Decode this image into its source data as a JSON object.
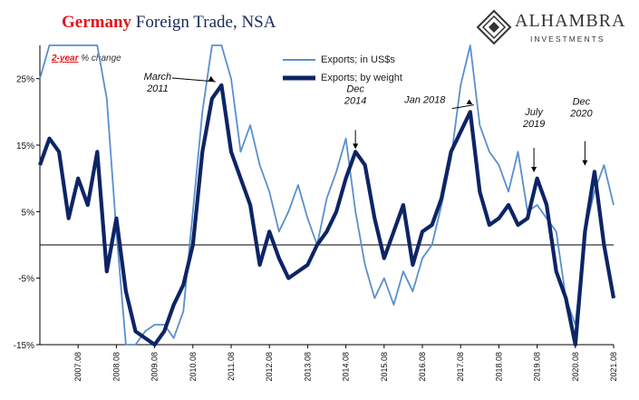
{
  "title": {
    "highlight": "Germany",
    "rest": " Foreign Trade, NSA"
  },
  "subtitle": {
    "highlight": "2-year",
    "rest": " % change"
  },
  "logo": {
    "name": "ALHAMBRA",
    "sub": "INVESTMENTS"
  },
  "colors": {
    "usd": "#5b8fcc",
    "weight": "#0d2466",
    "title_red": "#e0161b"
  },
  "chart_data": {
    "type": "line",
    "ylim": [
      -15,
      30
    ],
    "xlim": [
      "2006-08",
      "2021-08"
    ],
    "y_ticks": [
      25,
      15,
      5,
      -5,
      -15
    ],
    "y_tick_labels": [
      "25%",
      "15%",
      "5%",
      "-5%",
      "-15%"
    ],
    "x_tick_labels": [
      "2007.08",
      "2008.08",
      "2009.08",
      "2010.08",
      "2011.08",
      "2012.08",
      "2013.08",
      "2014.08",
      "2015.08",
      "2016.08",
      "2017.08",
      "2018.08",
      "2019.08",
      "2020.08",
      "2021.08"
    ],
    "legend_position": "top-center",
    "series": [
      {
        "name": "Exports; in US$s",
        "x": [
          "2006-08",
          "2006-11",
          "2007-02",
          "2007-05",
          "2007-08",
          "2007-11",
          "2008-02",
          "2008-05",
          "2008-08",
          "2008-11",
          "2009-02",
          "2009-05",
          "2009-08",
          "2009-11",
          "2010-02",
          "2010-05",
          "2010-08",
          "2010-11",
          "2011-02",
          "2011-05",
          "2011-08",
          "2011-11",
          "2012-02",
          "2012-05",
          "2012-08",
          "2012-11",
          "2013-02",
          "2013-05",
          "2013-08",
          "2013-11",
          "2014-02",
          "2014-05",
          "2014-08",
          "2014-11",
          "2015-02",
          "2015-05",
          "2015-08",
          "2015-11",
          "2016-02",
          "2016-05",
          "2016-08",
          "2016-11",
          "2017-02",
          "2017-05",
          "2017-08",
          "2017-11",
          "2018-02",
          "2018-05",
          "2018-08",
          "2018-11",
          "2019-02",
          "2019-05",
          "2019-08",
          "2019-11",
          "2020-02",
          "2020-05",
          "2020-08",
          "2020-11",
          "2021-02",
          "2021-05",
          "2021-08"
        ],
        "values": [
          25,
          30,
          30,
          30,
          30,
          30,
          30,
          22,
          2,
          -15,
          -15,
          -13,
          -12,
          -12,
          -14,
          -10,
          5,
          20,
          30,
          30,
          25,
          14,
          18,
          12,
          8,
          2,
          5,
          9,
          4,
          0,
          7,
          11,
          16,
          5,
          -3,
          -8,
          -5,
          -9,
          -4,
          -7,
          -2,
          0,
          6,
          13,
          24,
          30,
          18,
          14,
          12,
          8,
          14,
          5,
          6,
          4,
          2,
          -8,
          -12,
          2,
          8,
          12,
          6
        ]
      },
      {
        "name": "Exports; by weight",
        "x": [
          "2006-08",
          "2006-11",
          "2007-02",
          "2007-05",
          "2007-08",
          "2007-11",
          "2008-02",
          "2008-05",
          "2008-08",
          "2008-11",
          "2009-02",
          "2009-05",
          "2009-08",
          "2009-11",
          "2010-02",
          "2010-05",
          "2010-08",
          "2010-11",
          "2011-02",
          "2011-05",
          "2011-08",
          "2011-11",
          "2012-02",
          "2012-05",
          "2012-08",
          "2012-11",
          "2013-02",
          "2013-05",
          "2013-08",
          "2013-11",
          "2014-02",
          "2014-05",
          "2014-08",
          "2014-11",
          "2015-02",
          "2015-05",
          "2015-08",
          "2015-11",
          "2016-02",
          "2016-05",
          "2016-08",
          "2016-11",
          "2017-02",
          "2017-05",
          "2017-08",
          "2017-11",
          "2018-02",
          "2018-05",
          "2018-08",
          "2018-11",
          "2019-02",
          "2019-05",
          "2019-08",
          "2019-11",
          "2020-02",
          "2020-05",
          "2020-08",
          "2020-11",
          "2021-02",
          "2021-05",
          "2021-08"
        ],
        "values": [
          12,
          16,
          14,
          4,
          10,
          6,
          14,
          -4,
          4,
          -7,
          -13,
          -14,
          -15,
          -13,
          -9,
          -6,
          0,
          14,
          22,
          24,
          14,
          10,
          6,
          -3,
          2,
          -2,
          -5,
          -4,
          -3,
          0,
          2,
          5,
          10,
          14,
          12,
          4,
          -2,
          2,
          6,
          -3,
          2,
          3,
          7,
          14,
          17,
          20,
          8,
          3,
          4,
          6,
          3,
          4,
          10,
          6,
          -4,
          -8,
          -15,
          2,
          11,
          0,
          -8
        ]
      }
    ],
    "annotations": [
      {
        "text": "March\n2011",
        "x": "2011-02",
        "y": 24
      },
      {
        "text": "Dec\n2014",
        "x": "2014-11",
        "y": 14
      },
      {
        "text": "Jan 2018",
        "x": "2017-11",
        "y": 20.5
      },
      {
        "text": "July\n2019",
        "x": "2019-07",
        "y": 10.5
      },
      {
        "text": "Dec\n2020",
        "x": "2020-11",
        "y": 11.5
      }
    ]
  }
}
